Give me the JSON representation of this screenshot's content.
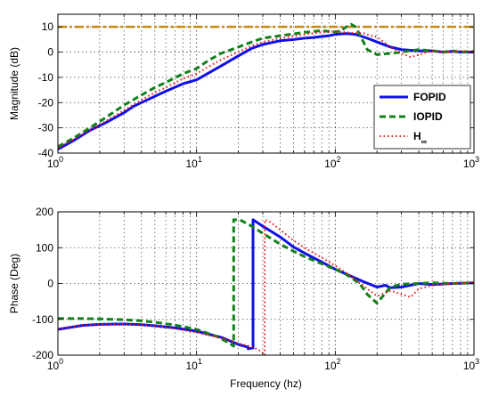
{
  "chart_data": [
    {
      "type": "line",
      "title": "",
      "xlabel": "",
      "ylabel": "Magnitude (dB)",
      "xscale": "log",
      "xlim": [
        1,
        1000
      ],
      "ylim": [
        -40,
        15
      ],
      "xticks": [
        {
          "value": 1,
          "base": "10",
          "exp": "0"
        },
        {
          "value": 10,
          "base": "10",
          "exp": "1"
        },
        {
          "value": 100,
          "base": "10",
          "exp": "2"
        },
        {
          "value": 1000,
          "base": "10",
          "exp": "3"
        }
      ],
      "yticks": [
        -40,
        -30,
        -20,
        -10,
        0,
        10
      ],
      "grid": true,
      "legend_position": "right",
      "reference_line": {
        "y": 10,
        "color": "#C8890C"
      },
      "series": [
        {
          "name": "FOPID",
          "color": "#1010E8",
          "style": "solid",
          "x": [
            1,
            1.3,
            1.7,
            2.2,
            3,
            3.5,
            4,
            5,
            6,
            8,
            10,
            12,
            15,
            20,
            25,
            30,
            40,
            50,
            60,
            70,
            80,
            90,
            100,
            110,
            120,
            130,
            140,
            160,
            180,
            200,
            250,
            300,
            400,
            500,
            600,
            700,
            800,
            1000
          ],
          "y": [
            -38.5,
            -35,
            -31,
            -28,
            -24,
            -21.5,
            -20,
            -17.5,
            -15.5,
            -12.5,
            -11,
            -8.5,
            -5.5,
            -1.5,
            1.5,
            3,
            4.5,
            5,
            5.5,
            5.8,
            6.2,
            6.5,
            7,
            7.2,
            7.3,
            7.2,
            7,
            6,
            5,
            4,
            2,
            1,
            0.5,
            0.5,
            0,
            0.3,
            0,
            0
          ]
        },
        {
          "name": "IOPID",
          "color": "#12801A",
          "style": "dashed",
          "x": [
            1,
            1.3,
            1.7,
            2.2,
            3,
            4,
            5,
            6,
            8,
            10,
            12,
            15,
            20,
            25,
            30,
            40,
            50,
            60,
            70,
            80,
            90,
            100,
            110,
            120,
            130,
            140,
            150,
            170,
            200,
            250,
            300,
            400,
            500,
            600,
            700,
            800,
            1000
          ],
          "y": [
            -37.5,
            -34,
            -30,
            -26,
            -21,
            -17,
            -14,
            -12,
            -8.5,
            -6.5,
            -3.5,
            -0.5,
            2,
            4,
            5.5,
            6.5,
            7.2,
            7.8,
            8.2,
            8.5,
            8.2,
            8,
            8.5,
            10,
            11,
            10,
            7,
            1,
            -1,
            -0.5,
            0,
            1,
            0.5,
            0,
            0.5,
            0,
            0.3
          ]
        },
        {
          "name": "H∞",
          "color": "#EE1111",
          "style": "dotted",
          "x": [
            1,
            1.3,
            1.7,
            2.2,
            3,
            4,
            5,
            6,
            8,
            10,
            12,
            15,
            20,
            25,
            30,
            40,
            50,
            60,
            70,
            80,
            90,
            100,
            120,
            140,
            160,
            180,
            200,
            250,
            300,
            350,
            400,
            500,
            600,
            800,
            1000
          ],
          "y": [
            -38,
            -34.5,
            -31,
            -27.5,
            -23,
            -19,
            -16,
            -14,
            -10.5,
            -8.5,
            -6,
            -3,
            0,
            2.5,
            4,
            5.5,
            6.3,
            7,
            7.5,
            7.8,
            8,
            8.2,
            7.8,
            7.5,
            7.5,
            6.5,
            6,
            2,
            -0.5,
            -2,
            -1,
            0.5,
            0,
            0.5,
            0.2
          ]
        }
      ],
      "legend": [
        {
          "label": "FOPID",
          "sub": ""
        },
        {
          "label": "IOPID",
          "sub": ""
        },
        {
          "label": "H",
          "sub": "∞"
        }
      ]
    },
    {
      "type": "line",
      "title": "",
      "xlabel": "Frequency (hz)",
      "ylabel": "Phase (Deg)",
      "xscale": "log",
      "xlim": [
        1,
        1000
      ],
      "ylim": [
        -200,
        200
      ],
      "xticks": [
        {
          "value": 1,
          "base": "10",
          "exp": "0"
        },
        {
          "value": 10,
          "base": "10",
          "exp": "1"
        },
        {
          "value": 100,
          "base": "10",
          "exp": "2"
        },
        {
          "value": 1000,
          "base": "10",
          "exp": "3"
        }
      ],
      "yticks": [
        -200,
        -100,
        0,
        100,
        200
      ],
      "grid": true,
      "series": [
        {
          "name": "FOPID",
          "color": "#1010E8",
          "style": "solid",
          "x": [
            1,
            1.5,
            2,
            3,
            4,
            5,
            7,
            10,
            15,
            20,
            23.5,
            23.5,
            25.5,
            25.5,
            30,
            40,
            50,
            60,
            80,
            100,
            130,
            160,
            200,
            230,
            250,
            300,
            400,
            500,
            700,
            1000
          ],
          "y": [
            -128,
            -117,
            -114,
            -113,
            -115,
            -118,
            -124,
            -133,
            -150,
            -170,
            -178,
            -182,
            -180,
            178,
            160,
            130,
            102,
            85,
            60,
            40,
            20,
            5,
            -10,
            -5,
            -12,
            -10,
            0,
            -3,
            0,
            2
          ]
        },
        {
          "name": "IOPID",
          "color": "#12801A",
          "style": "dashed",
          "x": [
            1,
            1.5,
            2,
            3,
            4,
            5,
            7,
            10,
            14,
            17,
            18.5,
            18.5,
            20.5,
            20.5,
            25,
            30,
            40,
            50,
            60,
            80,
            100,
            120,
            150,
            170,
            200,
            250,
            300,
            400,
            500,
            700,
            1000
          ],
          "y": [
            -98,
            -98,
            -99,
            -101,
            -104,
            -108,
            -116,
            -128,
            -148,
            -165,
            -175,
            178,
            178,
            178,
            160,
            140,
            110,
            90,
            75,
            55,
            40,
            25,
            0,
            -30,
            -55,
            -10,
            -2,
            0,
            2,
            0,
            2
          ]
        },
        {
          "name": "H∞",
          "color": "#EE1111",
          "style": "dotted",
          "x": [
            1,
            1.5,
            2,
            3,
            5,
            7,
            10,
            15,
            20,
            25,
            29,
            31,
            31,
            34,
            40,
            50,
            60,
            80,
            100,
            130,
            170,
            200,
            250,
            300,
            350,
            400,
            500,
            700,
            1000
          ],
          "y": [
            -127,
            -116,
            -113,
            -113,
            -118,
            -126,
            -137,
            -152,
            -167,
            -177,
            -188,
            -200,
            178,
            172,
            150,
            120,
            100,
            72,
            50,
            20,
            -15,
            -35,
            -20,
            -30,
            -38,
            -15,
            -5,
            0,
            3
          ]
        }
      ]
    }
  ]
}
